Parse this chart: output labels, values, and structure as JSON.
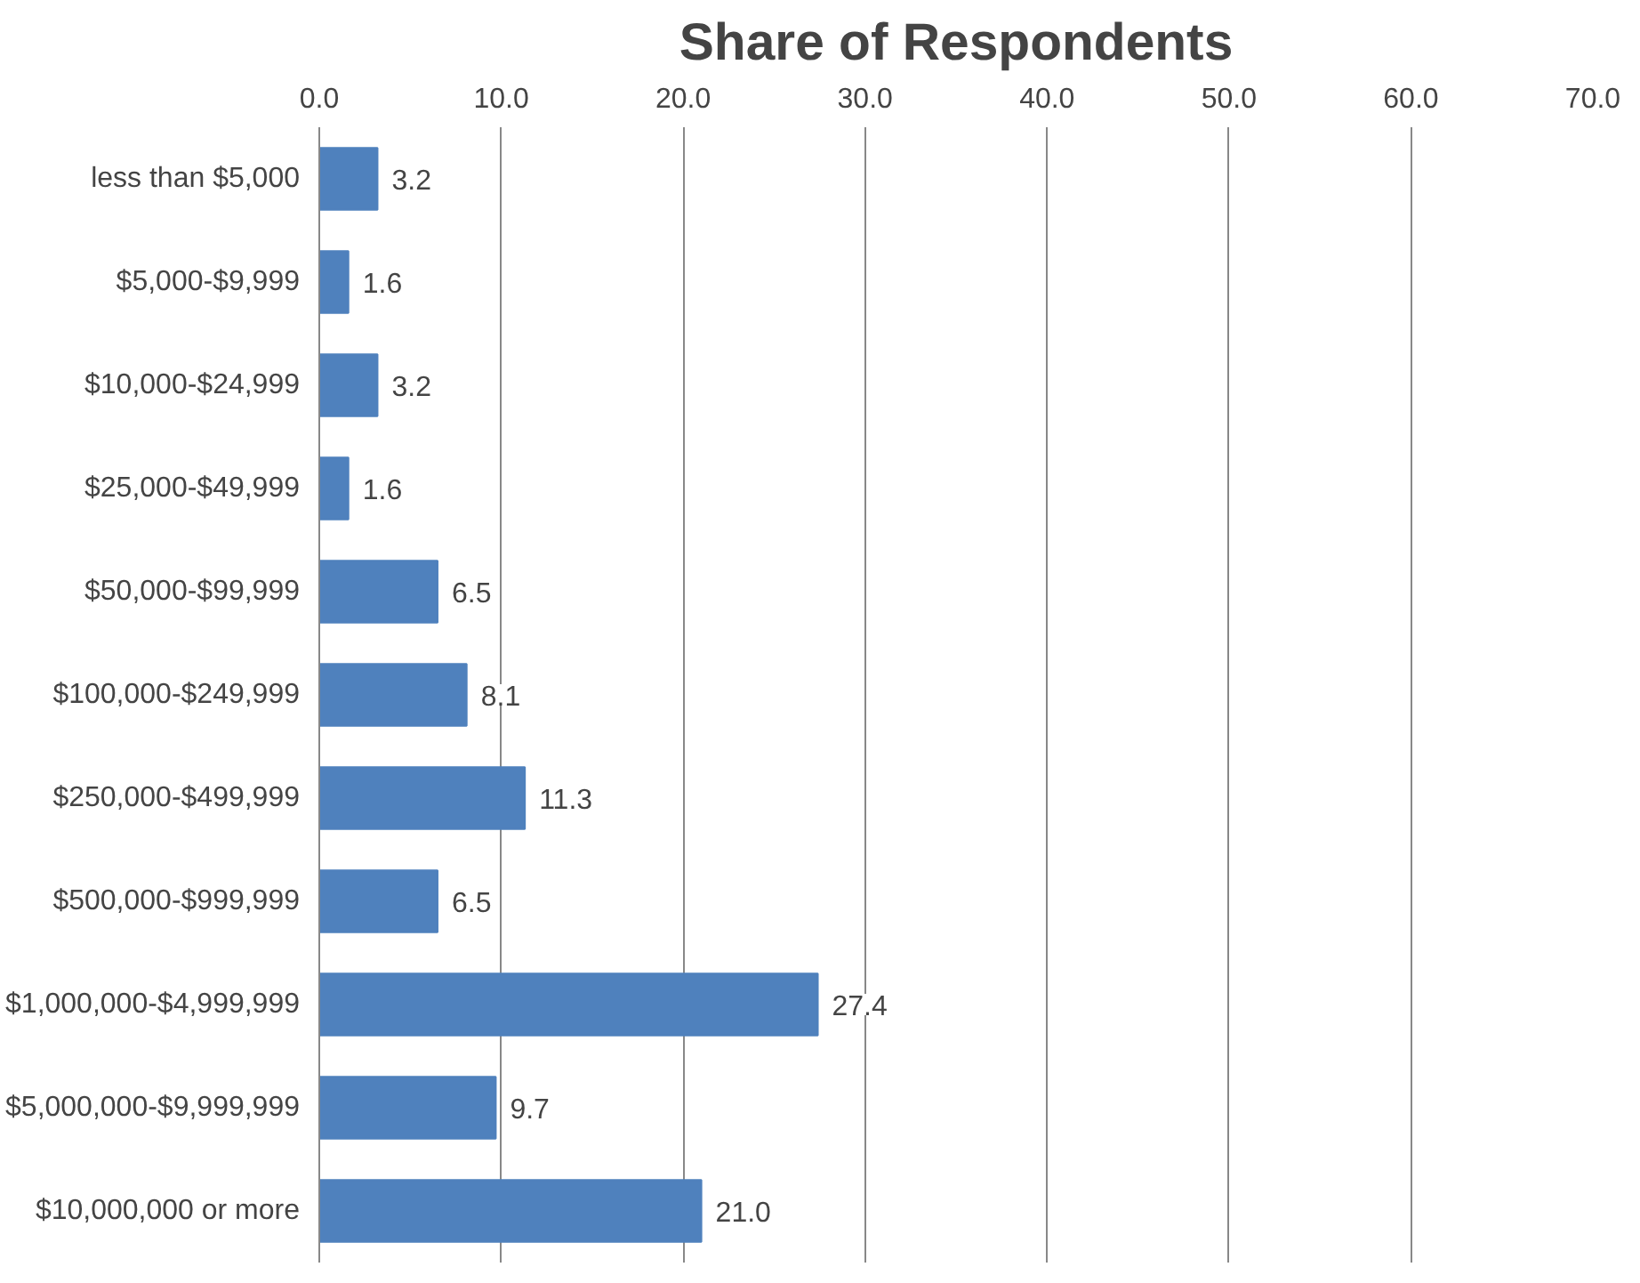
{
  "chart_data": {
    "type": "bar",
    "orientation": "horizontal",
    "title": "Share of Respondents",
    "categories": [
      "less than $5,000",
      "$5,000-$9,999",
      "$10,000-$24,999",
      "$25,000-$49,999",
      "$50,000-$99,999",
      "$100,000-$249,999",
      "$250,000-$499,999",
      "$500,000-$999,999",
      "$1,000,000-$4,999,999",
      "$5,000,000-$9,999,999",
      "$10,000,000 or more"
    ],
    "values": [
      3.2,
      1.6,
      3.2,
      1.6,
      6.5,
      8.1,
      11.3,
      6.5,
      27.4,
      9.7,
      21.0
    ],
    "value_labels": [
      "3.2",
      "1.6",
      "3.2",
      "1.6",
      "6.5",
      "8.1",
      "11.3",
      "6.5",
      "27.4",
      "9.7",
      "21.0"
    ],
    "color": "#4f81bd",
    "xlim": [
      0,
      70
    ],
    "xticks": [
      {
        "value": 0,
        "label": "0.0"
      },
      {
        "value": 10,
        "label": "10.0"
      },
      {
        "value": 20,
        "label": "20.0"
      },
      {
        "value": 30,
        "label": "30.0"
      },
      {
        "value": 40,
        "label": "40.0"
      },
      {
        "value": 50,
        "label": "50.0"
      },
      {
        "value": 60,
        "label": "60.0"
      },
      {
        "value": 70,
        "label": "70.0"
      }
    ],
    "grid": "x"
  }
}
